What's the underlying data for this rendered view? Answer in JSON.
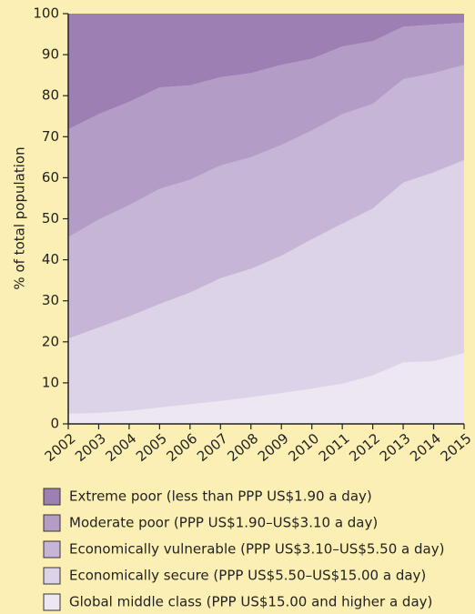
{
  "chart_data": {
    "type": "stacked_area",
    "y_label": "% of total population",
    "x": [
      2002,
      2003,
      2004,
      2005,
      2006,
      2007,
      2008,
      2009,
      2010,
      2011,
      2012,
      2013,
      2014,
      2015
    ],
    "xlim": [
      2002,
      2015
    ],
    "ylim": [
      0,
      100
    ],
    "yticks": [
      0,
      10,
      20,
      30,
      40,
      50,
      60,
      70,
      80,
      90,
      100
    ],
    "series": [
      {
        "name": "Extreme poor (less than PPP US$1.90 a day)",
        "color": "#9d7fb3",
        "values": [
          28.2,
          24.5,
          21.5,
          18,
          17.5,
          15.5,
          14.5,
          12.5,
          11,
          8,
          6.7,
          3.2,
          2.7,
          2.2
        ]
      },
      {
        "name": "Moderate poor (PPP US$1.90–US$3.10 a day)",
        "color": "#b39cc6",
        "values": [
          26.3,
          25.7,
          25.2,
          24.7,
          23,
          21.5,
          20.5,
          19.5,
          17.5,
          16.5,
          15.3,
          12.8,
          11.8,
          10.3
        ]
      },
      {
        "name": "Economically vulnerable (PPP US$3.10–US$5.50 a day)",
        "color": "#c6b5d7",
        "values": [
          24.7,
          26.3,
          27.1,
          28.1,
          27.5,
          27.5,
          27.2,
          27,
          26.5,
          26.7,
          25.5,
          25.2,
          24.2,
          23.2
        ]
      },
      {
        "name": "Economically secure (PPP US$5.50–US$15.00 a day)",
        "color": "#ddd3e8",
        "values": [
          18.3,
          20.8,
          23,
          25.2,
          27.2,
          29.9,
          31.3,
          33.5,
          36.4,
          39,
          40.7,
          43.8,
          46,
          47
        ]
      },
      {
        "name": "Global middle class (PPP US$15.00 and higher a day)",
        "color": "#ede7f3",
        "values": [
          2.5,
          2.7,
          3.2,
          4,
          4.8,
          5.6,
          6.5,
          7.5,
          8.6,
          9.8,
          11.8,
          15,
          15.3,
          17.3
        ]
      }
    ]
  }
}
